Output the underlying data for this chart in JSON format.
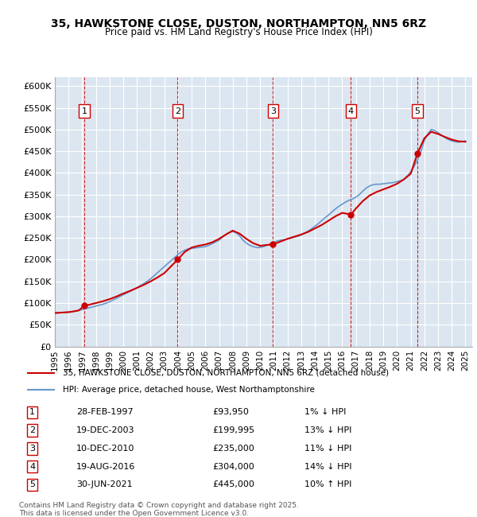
{
  "title_line1": "35, HAWKSTONE CLOSE, DUSTON, NORTHAMPTON, NN5 6RZ",
  "title_line2": "Price paid vs. HM Land Registry's House Price Index (HPI)",
  "legend_line1": "35, HAWKSTONE CLOSE, DUSTON, NORTHAMPTON, NN5 6RZ (detached house)",
  "legend_line2": "HPI: Average price, detached house, West Northamptonshire",
  "footer": "Contains HM Land Registry data © Crown copyright and database right 2025.\nThis data is licensed under the Open Government Licence v3.0.",
  "ylabel": "",
  "background_color": "#dce6f1",
  "plot_bg_color": "#dce6f1",
  "fig_bg_color": "#ffffff",
  "sale_color": "#cc0000",
  "hpi_color": "#6699cc",
  "grid_color": "#ffffff",
  "ylim": [
    0,
    620000
  ],
  "xlim_start": 1995.0,
  "xlim_end": 2025.5,
  "yticks": [
    0,
    50000,
    100000,
    150000,
    200000,
    250000,
    300000,
    350000,
    400000,
    450000,
    500000,
    550000,
    600000
  ],
  "ytick_labels": [
    "£0",
    "£50K",
    "£100K",
    "£150K",
    "£200K",
    "£250K",
    "£300K",
    "£350K",
    "£400K",
    "£450K",
    "£500K",
    "£550K",
    "£600K"
  ],
  "xticks": [
    1995,
    1996,
    1997,
    1998,
    1999,
    2000,
    2001,
    2002,
    2003,
    2004,
    2005,
    2006,
    2007,
    2008,
    2009,
    2010,
    2011,
    2012,
    2013,
    2014,
    2015,
    2016,
    2017,
    2018,
    2019,
    2020,
    2021,
    2022,
    2023,
    2024,
    2025
  ],
  "sale_dates": [
    1997.16,
    2003.97,
    2010.94,
    2016.64,
    2021.5
  ],
  "sale_prices": [
    93950,
    199995,
    235000,
    304000,
    445000
  ],
  "sale_labels": [
    "1",
    "2",
    "3",
    "4",
    "5"
  ],
  "sale_info": [
    {
      "num": "1",
      "date": "28-FEB-1997",
      "price": "£93,950",
      "hpi": "1% ↓ HPI"
    },
    {
      "num": "2",
      "date": "19-DEC-2003",
      "price": "£199,995",
      "hpi": "13% ↓ HPI"
    },
    {
      "num": "3",
      "date": "10-DEC-2010",
      "price": "£235,000",
      "hpi": "11% ↓ HPI"
    },
    {
      "num": "4",
      "date": "19-AUG-2016",
      "price": "£304,000",
      "hpi": "14% ↓ HPI"
    },
    {
      "num": "5",
      "date": "30-JUN-2021",
      "price": "£445,000",
      "hpi": "10% ↑ HPI"
    }
  ],
  "hpi_x": [
    1995.0,
    1995.25,
    1995.5,
    1995.75,
    1996.0,
    1996.25,
    1996.5,
    1996.75,
    1997.0,
    1997.25,
    1997.5,
    1997.75,
    1998.0,
    1998.25,
    1998.5,
    1998.75,
    1999.0,
    1999.25,
    1999.5,
    1999.75,
    2000.0,
    2000.25,
    2000.5,
    2000.75,
    2001.0,
    2001.25,
    2001.5,
    2001.75,
    2002.0,
    2002.25,
    2002.5,
    2002.75,
    2003.0,
    2003.25,
    2003.5,
    2003.75,
    2004.0,
    2004.25,
    2004.5,
    2004.75,
    2005.0,
    2005.25,
    2005.5,
    2005.75,
    2006.0,
    2006.25,
    2006.5,
    2006.75,
    2007.0,
    2007.25,
    2007.5,
    2007.75,
    2008.0,
    2008.25,
    2008.5,
    2008.75,
    2009.0,
    2009.25,
    2009.5,
    2009.75,
    2010.0,
    2010.25,
    2010.5,
    2010.75,
    2011.0,
    2011.25,
    2011.5,
    2011.75,
    2012.0,
    2012.25,
    2012.5,
    2012.75,
    2013.0,
    2013.25,
    2013.5,
    2013.75,
    2014.0,
    2014.25,
    2014.5,
    2014.75,
    2015.0,
    2015.25,
    2015.5,
    2015.75,
    2016.0,
    2016.25,
    2016.5,
    2016.75,
    2017.0,
    2017.25,
    2017.5,
    2017.75,
    2018.0,
    2018.25,
    2018.5,
    2018.75,
    2019.0,
    2019.25,
    2019.5,
    2019.75,
    2020.0,
    2020.25,
    2020.5,
    2020.75,
    2021.0,
    2021.25,
    2021.5,
    2021.75,
    2022.0,
    2022.25,
    2022.5,
    2022.75,
    2023.0,
    2023.25,
    2023.5,
    2023.75,
    2024.0,
    2024.25,
    2024.5,
    2024.75,
    2025.0
  ],
  "hpi_y": [
    77000,
    77500,
    78000,
    78500,
    79000,
    80000,
    81500,
    83000,
    85000,
    87000,
    89000,
    91000,
    93000,
    95000,
    97000,
    100000,
    103000,
    107000,
    111000,
    115000,
    119000,
    123000,
    127000,
    131000,
    135000,
    140000,
    145000,
    150000,
    156000,
    163000,
    170000,
    177000,
    184000,
    191000,
    198000,
    205000,
    212000,
    218000,
    222000,
    225000,
    226000,
    227000,
    228000,
    229000,
    230000,
    233000,
    237000,
    241000,
    245000,
    252000,
    258000,
    263000,
    265000,
    262000,
    255000,
    245000,
    238000,
    233000,
    230000,
    228000,
    228000,
    230000,
    233000,
    236000,
    240000,
    243000,
    245000,
    246000,
    248000,
    250000,
    252000,
    254000,
    257000,
    261000,
    266000,
    271000,
    277000,
    283000,
    290000,
    297000,
    303000,
    310000,
    317000,
    323000,
    328000,
    333000,
    337000,
    340000,
    344000,
    350000,
    358000,
    365000,
    370000,
    373000,
    374000,
    374000,
    375000,
    376000,
    377000,
    378000,
    380000,
    382000,
    385000,
    393000,
    402000,
    415000,
    430000,
    450000,
    475000,
    490000,
    500000,
    498000,
    493000,
    487000,
    482000,
    477000,
    474000,
    472000,
    471000,
    472000,
    474000
  ],
  "sale_line_x": [
    1995.0,
    1995.25,
    1995.5,
    1995.75,
    1996.0,
    1996.25,
    1996.5,
    1996.75,
    1997.16,
    1997.5,
    1997.75,
    1998.0,
    1998.5,
    1999.0,
    1999.5,
    2000.0,
    2000.5,
    2001.0,
    2001.5,
    2002.0,
    2002.5,
    2003.0,
    2003.5,
    2003.97,
    2004.5,
    2005.0,
    2005.5,
    2006.0,
    2006.5,
    2007.0,
    2007.5,
    2008.0,
    2008.5,
    2009.0,
    2009.5,
    2010.0,
    2010.5,
    2010.94,
    2011.5,
    2012.0,
    2012.5,
    2013.0,
    2013.5,
    2014.0,
    2014.5,
    2015.0,
    2015.5,
    2016.0,
    2016.64,
    2017.0,
    2017.5,
    2018.0,
    2018.5,
    2019.0,
    2019.5,
    2020.0,
    2020.5,
    2021.0,
    2021.5,
    2022.0,
    2022.5,
    2023.0,
    2023.5,
    2024.0,
    2024.5,
    2025.0
  ],
  "sale_line_y": [
    77000,
    77500,
    78000,
    78500,
    79000,
    80000,
    81500,
    83000,
    93950,
    96000,
    98000,
    100000,
    104000,
    109000,
    115000,
    122000,
    128000,
    135000,
    142000,
    150000,
    159000,
    169000,
    185000,
    199995,
    218000,
    228000,
    232000,
    235000,
    240000,
    248000,
    258000,
    267000,
    260000,
    248000,
    238000,
    232000,
    234000,
    235000,
    242000,
    248000,
    253000,
    258000,
    264000,
    272000,
    280000,
    290000,
    300000,
    308000,
    304000,
    318000,
    335000,
    348000,
    356000,
    362000,
    368000,
    375000,
    385000,
    398000,
    445000,
    480000,
    495000,
    490000,
    483000,
    477000,
    473000,
    472000
  ]
}
